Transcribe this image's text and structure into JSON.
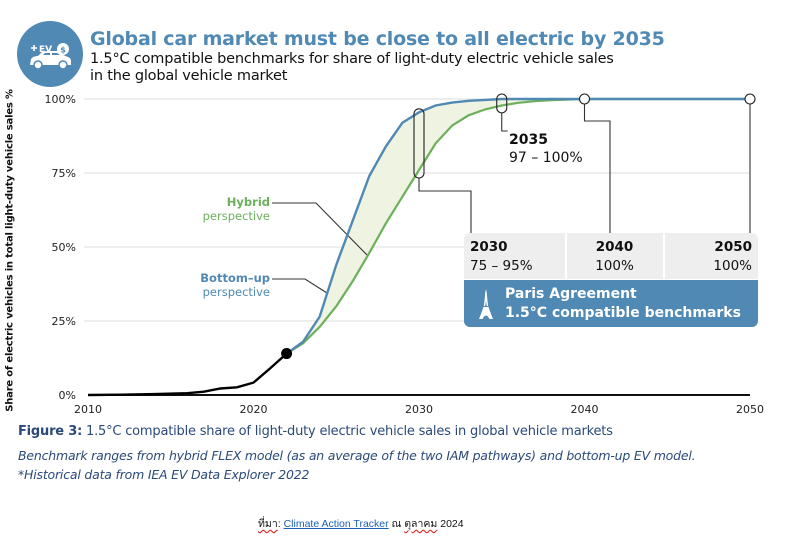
{
  "header": {
    "icon": "ev-car-charging-icon",
    "icon_text": "EV",
    "title": "Global car market must be close to all electric by 2035",
    "subtitle_line1": "1.5°C compatible benchmarks for share of light-duty electric vehicle sales",
    "subtitle_line2": "in the global vehicle market"
  },
  "colors": {
    "accent_blue": "#5089b4",
    "hybrid_green": "#6cb05c",
    "historical_black": "#000000",
    "band_fill": "#eef3e2",
    "caption_navy": "#2b4a7a"
  },
  "chart_data": {
    "type": "line",
    "title": "Global car market must be close to all electric by 2035",
    "subtitle": "1.5°C compatible benchmarks for share of light-duty electric vehicle sales in the global vehicle market",
    "xlabel": "",
    "ylabel": "Share of electric vehicles in total light-duty vehicle sales %",
    "xlim": [
      2010,
      2050
    ],
    "ylim": [
      0,
      100
    ],
    "x_ticks": [
      "2010",
      "2020",
      "2030",
      "2040",
      "2050"
    ],
    "x_tick_values": [
      2010,
      2020,
      2030,
      2040,
      2050
    ],
    "y_ticks": [
      "0%",
      "25%",
      "50%",
      "75%",
      "100%"
    ],
    "y_tick_values": [
      0,
      25,
      50,
      75,
      100
    ],
    "grid": "horizontal",
    "series": [
      {
        "name": "Historical",
        "color": "#000000",
        "x": [
          2010,
          2012,
          2014,
          2016,
          2017,
          2018,
          2019,
          2020,
          2021,
          2022
        ],
        "y": [
          0,
          0.1,
          0.3,
          0.6,
          1.1,
          2.2,
          2.6,
          4.2,
          9,
          14
        ]
      },
      {
        "name": "Bottom-up perspective",
        "color": "#5089b4",
        "x": [
          2022,
          2023,
          2024,
          2025,
          2026,
          2027,
          2028,
          2029,
          2030,
          2031,
          2032,
          2033,
          2034,
          2035,
          2040,
          2050
        ],
        "y": [
          14,
          18,
          26.5,
          44,
          59,
          74,
          84,
          92,
          95.5,
          97.8,
          98.8,
          99.4,
          99.7,
          100,
          100,
          100
        ]
      },
      {
        "name": "Hybrid perspective",
        "color": "#6cb05c",
        "x": [
          2022,
          2023,
          2024,
          2025,
          2026,
          2027,
          2028,
          2029,
          2030,
          2031,
          2032,
          2033,
          2034,
          2035,
          2036,
          2037,
          2038,
          2040,
          2050
        ],
        "y": [
          14,
          17.5,
          23,
          30,
          38.5,
          48,
          58,
          67,
          76,
          85,
          91,
          94.5,
          96.5,
          97.8,
          98.7,
          99.3,
          99.6,
          100,
          100
        ]
      }
    ],
    "markers": [
      {
        "label": "Latest historical data point",
        "x": 2022,
        "y": 14
      }
    ],
    "legend_labels": [
      {
        "bold": "Hybrid",
        "text": "perspective"
      },
      {
        "bold": "Bottom–up",
        "text": "perspective"
      }
    ],
    "annotations": [
      {
        "year": "2030",
        "range": "75 – 95%",
        "x": 2030,
        "y_low": 75,
        "y_high": 95
      },
      {
        "year": "2035",
        "range": "97 – 100%",
        "x": 2035,
        "y_low": 97,
        "y_high": 100
      },
      {
        "year": "2040",
        "range": "100%",
        "x": 2040,
        "y_low": 100,
        "y_high": 100
      },
      {
        "year": "2050",
        "range": "100%",
        "x": 2050,
        "y_low": 100,
        "y_high": 100
      }
    ],
    "benchmark_box": {
      "line1": "Paris Agreement",
      "line2": "1.5°C compatible benchmarks",
      "icon": "eiffel-tower-icon"
    }
  },
  "caption": {
    "label": "Figure 3:",
    "text": " 1.5°C compatible share of light-duty electric vehicle sales in global vehicle markets",
    "note_line1": "Benchmark ranges from hybrid FLEX model (as an average of the two IAM pathways) and bottom-up EV model.",
    "note_line2": "*Historical data from IEA EV Data Explorer 2022"
  },
  "source": {
    "prefix": "ที่มา",
    "colon": ": ",
    "link_text": "Climate Action Tracker",
    "middle": " ณ ",
    "month": "ตุลาคม",
    "year": " 2024"
  }
}
